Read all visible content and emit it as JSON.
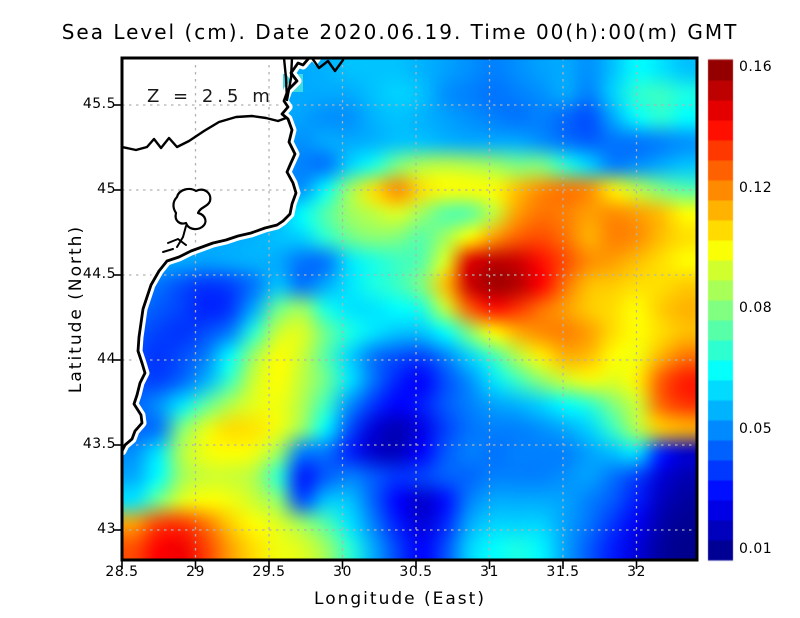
{
  "title": "Sea Level (cm). Date 2020.06.19. Time 00(h):00(m) GMT",
  "annotation": "Z = 2.5 m",
  "axes": {
    "x": {
      "label": "Longitude (East)",
      "tick_labels": [
        "28.5",
        "29",
        "29.5",
        "30",
        "30.5",
        "31",
        "31.5",
        "32"
      ],
      "range": [
        28.5,
        32.41
      ]
    },
    "y": {
      "label": "Latitude (North)",
      "tick_labels": [
        "45.5",
        "45",
        "44.5",
        "44",
        "43.5",
        "43"
      ],
      "range": [
        42.82,
        45.78
      ]
    }
  },
  "colorbar": {
    "labels": [
      "0.16",
      "0.12",
      "0.08",
      "0.05",
      "0.01"
    ],
    "levels": [
      0.01,
      0.05,
      0.08,
      0.12,
      0.16
    ],
    "min_color": "#00007f",
    "max_color": "#7f0000",
    "colormap": "jet"
  },
  "chart_data": {
    "type": "heatmap",
    "title": "Sea Level (cm). Date 2020.06.19. Time 00(h):00(m) GMT",
    "xlabel": "Longitude (East)",
    "ylabel": "Latitude (North)",
    "x_range": [
      28.5,
      32.41
    ],
    "y_range": [
      42.82,
      45.78
    ],
    "units": "cm",
    "colormap": "jet",
    "levels": [
      0.01,
      0.05,
      0.08,
      0.12,
      0.16
    ],
    "grid_cols": 24,
    "grid_rows": 21,
    "values": [
      [
        0.055,
        0.055,
        0.055,
        0.055,
        0.055,
        0.055,
        0.055,
        0.055,
        0.056,
        0.058,
        0.058,
        0.058,
        0.056,
        0.054,
        0.052,
        0.05,
        0.052,
        0.054,
        0.055,
        0.052,
        0.058,
        0.065,
        0.062,
        0.058
      ],
      [
        0.055,
        0.055,
        0.055,
        0.055,
        0.055,
        0.055,
        0.055,
        0.055,
        0.055,
        0.055,
        0.058,
        0.06,
        0.058,
        0.052,
        0.05,
        0.048,
        0.05,
        0.052,
        0.055,
        0.05,
        0.06,
        0.07,
        0.072,
        0.068
      ],
      [
        0.055,
        0.055,
        0.055,
        0.055,
        0.055,
        0.055,
        0.055,
        0.054,
        0.052,
        0.052,
        0.056,
        0.058,
        0.056,
        0.054,
        0.052,
        0.05,
        0.048,
        0.05,
        0.046,
        0.042,
        0.055,
        0.065,
        0.07,
        0.065
      ],
      [
        0.055,
        0.055,
        0.055,
        0.055,
        0.055,
        0.055,
        0.054,
        0.052,
        0.055,
        0.055,
        0.056,
        0.058,
        0.058,
        0.056,
        0.055,
        0.055,
        0.055,
        0.052,
        0.048,
        0.045,
        0.048,
        0.048,
        0.05,
        0.052
      ],
      [
        0.055,
        0.055,
        0.055,
        0.055,
        0.055,
        0.054,
        0.052,
        0.05,
        0.048,
        0.06,
        0.068,
        0.08,
        0.088,
        0.09,
        0.088,
        0.085,
        0.08,
        0.08,
        0.07,
        0.06,
        0.05,
        0.052,
        0.055,
        0.058
      ],
      [
        0.055,
        0.055,
        0.055,
        0.055,
        0.055,
        0.055,
        0.054,
        0.052,
        0.065,
        0.085,
        0.105,
        0.118,
        0.105,
        0.1,
        0.1,
        0.1,
        0.11,
        0.118,
        0.122,
        0.118,
        0.102,
        0.09,
        0.08,
        0.075
      ],
      [
        0.055,
        0.055,
        0.055,
        0.055,
        0.055,
        0.055,
        0.056,
        0.065,
        0.075,
        0.085,
        0.09,
        0.095,
        0.085,
        0.075,
        0.075,
        0.09,
        0.115,
        0.122,
        0.12,
        0.115,
        0.118,
        0.115,
        0.11,
        0.1
      ],
      [
        0.055,
        0.055,
        0.055,
        0.055,
        0.055,
        0.056,
        0.058,
        0.06,
        0.07,
        0.078,
        0.082,
        0.08,
        0.075,
        0.085,
        0.1,
        0.115,
        0.125,
        0.128,
        0.122,
        0.112,
        0.12,
        0.118,
        0.11,
        0.105
      ],
      [
        0.055,
        0.055,
        0.055,
        0.054,
        0.055,
        0.056,
        0.055,
        0.048,
        0.048,
        0.062,
        0.068,
        0.072,
        0.075,
        0.095,
        0.145,
        0.15,
        0.148,
        0.138,
        0.128,
        0.118,
        0.115,
        0.11,
        0.105,
        0.1
      ],
      [
        0.05,
        0.048,
        0.042,
        0.038,
        0.04,
        0.048,
        0.058,
        0.048,
        0.055,
        0.062,
        0.068,
        0.072,
        0.08,
        0.11,
        0.148,
        0.155,
        0.152,
        0.14,
        0.122,
        0.11,
        0.108,
        0.105,
        0.105,
        0.108
      ],
      [
        0.048,
        0.044,
        0.04,
        0.035,
        0.038,
        0.055,
        0.078,
        0.085,
        0.068,
        0.062,
        0.062,
        0.065,
        0.068,
        0.09,
        0.125,
        0.138,
        0.132,
        0.122,
        0.115,
        0.108,
        0.105,
        0.1,
        0.108,
        0.112
      ],
      [
        0.044,
        0.04,
        0.038,
        0.042,
        0.05,
        0.07,
        0.092,
        0.095,
        0.078,
        0.068,
        0.062,
        0.058,
        0.058,
        0.065,
        0.08,
        0.1,
        0.112,
        0.118,
        0.12,
        0.115,
        0.105,
        0.1,
        0.105,
        0.11
      ],
      [
        0.042,
        0.038,
        0.042,
        0.05,
        0.065,
        0.085,
        0.1,
        0.092,
        0.075,
        0.06,
        0.048,
        0.042,
        0.04,
        0.05,
        0.06,
        0.072,
        0.088,
        0.102,
        0.112,
        0.11,
        0.1,
        0.098,
        0.112,
        0.122
      ],
      [
        0.042,
        0.04,
        0.046,
        0.056,
        0.072,
        0.092,
        0.1,
        0.09,
        0.078,
        0.062,
        0.048,
        0.035,
        0.03,
        0.042,
        0.052,
        0.062,
        0.072,
        0.082,
        0.092,
        0.098,
        0.095,
        0.102,
        0.126,
        0.136
      ],
      [
        0.046,
        0.052,
        0.062,
        0.076,
        0.088,
        0.096,
        0.098,
        0.088,
        0.072,
        0.052,
        0.038,
        0.03,
        0.034,
        0.044,
        0.05,
        0.054,
        0.056,
        0.06,
        0.065,
        0.07,
        0.08,
        0.092,
        0.124,
        0.132
      ],
      [
        0.046,
        0.048,
        0.08,
        0.096,
        0.105,
        0.104,
        0.098,
        0.084,
        0.064,
        0.042,
        0.024,
        0.018,
        0.026,
        0.04,
        0.048,
        0.05,
        0.05,
        0.052,
        0.055,
        0.06,
        0.072,
        0.088,
        0.108,
        0.112
      ],
      [
        0.052,
        0.062,
        0.088,
        0.098,
        0.1,
        0.098,
        0.085,
        0.05,
        0.048,
        0.035,
        0.022,
        0.02,
        0.03,
        0.044,
        0.05,
        0.048,
        0.05,
        0.05,
        0.05,
        0.054,
        0.058,
        0.062,
        0.035,
        0.022
      ],
      [
        0.055,
        0.065,
        0.085,
        0.092,
        0.092,
        0.088,
        0.07,
        0.034,
        0.044,
        0.05,
        0.044,
        0.038,
        0.04,
        0.045,
        0.046,
        0.05,
        0.05,
        0.05,
        0.052,
        0.054,
        0.048,
        0.04,
        0.024,
        0.018
      ],
      [
        0.062,
        0.078,
        0.095,
        0.1,
        0.098,
        0.092,
        0.082,
        0.042,
        0.058,
        0.058,
        0.045,
        0.03,
        0.022,
        0.032,
        0.05,
        0.055,
        0.055,
        0.055,
        0.054,
        0.05,
        0.044,
        0.034,
        0.02,
        0.015
      ],
      [
        0.115,
        0.13,
        0.132,
        0.122,
        0.108,
        0.1,
        0.095,
        0.085,
        0.075,
        0.062,
        0.05,
        0.034,
        0.024,
        0.036,
        0.055,
        0.06,
        0.06,
        0.06,
        0.054,
        0.048,
        0.038,
        0.028,
        0.017,
        0.013
      ],
      [
        0.128,
        0.14,
        0.142,
        0.13,
        0.115,
        0.105,
        0.098,
        0.095,
        0.085,
        0.07,
        0.055,
        0.04,
        0.03,
        0.042,
        0.06,
        0.065,
        0.068,
        0.064,
        0.054,
        0.044,
        0.034,
        0.024,
        0.015,
        0.012
      ]
    ]
  }
}
